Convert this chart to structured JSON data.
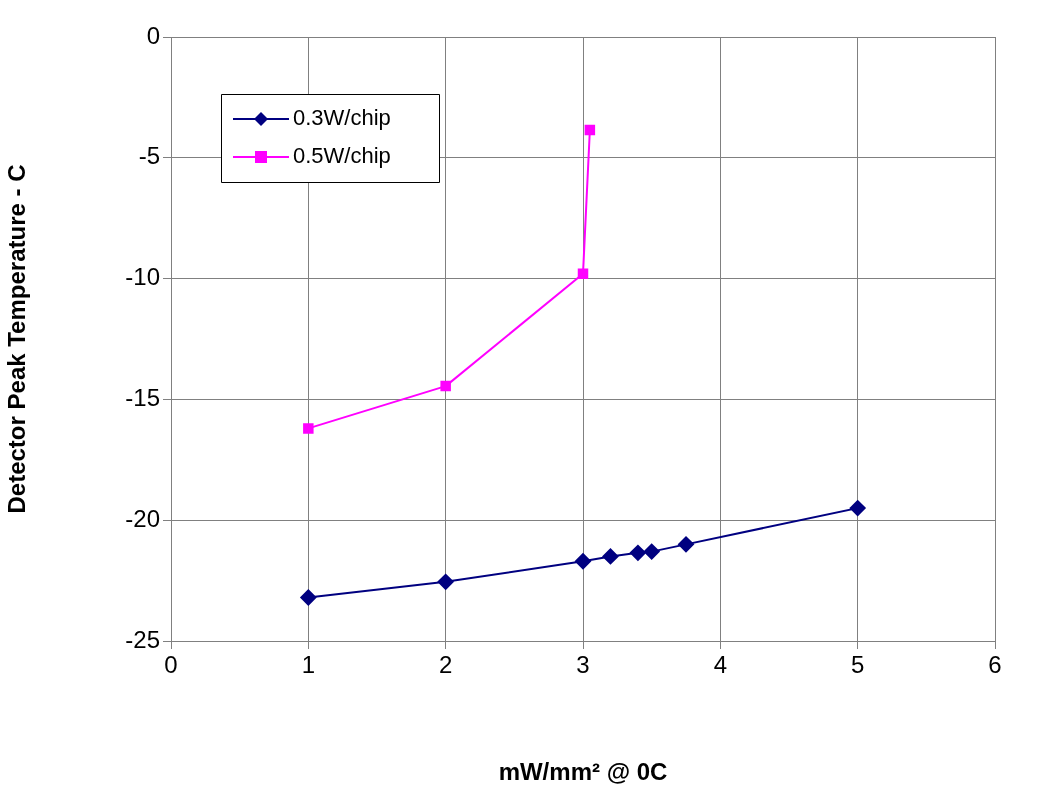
{
  "chart_data": {
    "type": "line",
    "xlabel": "mW/mm² @ 0C",
    "ylabel": "Detector Peak Temperature - C",
    "xlim": [
      0,
      6
    ],
    "xticks": [
      0,
      1,
      2,
      3,
      4,
      5,
      6
    ],
    "ylim": [
      -25,
      0
    ],
    "yticks": [
      -25,
      -20,
      -15,
      -10,
      -5,
      0
    ],
    "grid": true,
    "legend": "top left",
    "series": [
      {
        "name": "0.3W/chip",
        "color": "#000080",
        "marker": "diamond",
        "x": [
          1,
          2,
          3,
          3.2,
          3.4,
          3.5,
          3.75,
          5
        ],
        "values": [
          -23.2,
          -22.55,
          -21.7,
          -21.5,
          -21.35,
          -21.3,
          -21.0,
          -19.5
        ]
      },
      {
        "name": "0.5W/chip",
        "color": "#ff00ff",
        "marker": "square",
        "x": [
          1,
          2,
          3,
          3.05
        ],
        "values": [
          -16.2,
          -14.45,
          -9.8,
          -3.85
        ]
      }
    ]
  }
}
